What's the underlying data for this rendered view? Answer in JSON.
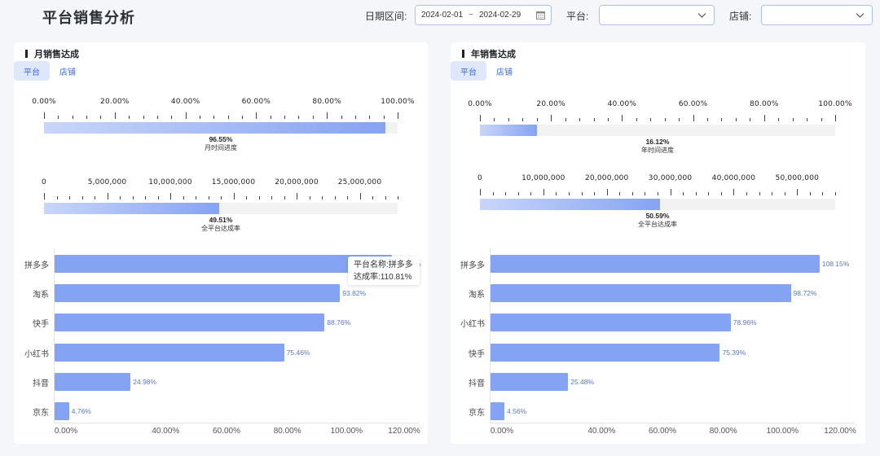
{
  "header": {
    "title": "平台销售分析",
    "filters": {
      "date_label": "日期区间:",
      "date_start": "2024-02-01",
      "date_sep": "~",
      "date_end": "2024-02-29",
      "platform_label": "平台:",
      "platform_value": "",
      "store_label": "店铺:",
      "store_value": ""
    }
  },
  "monthly": {
    "title": "月销售达成",
    "tabs": [
      {
        "label": "平台",
        "active": true
      },
      {
        "label": "店铺",
        "active": false
      }
    ],
    "time_gauge": {
      "ticks": [
        "0.00%",
        "20.00%",
        "40.00%",
        "60.00%",
        "80.00%",
        "100.00%"
      ],
      "value": "96.55%",
      "ratio": 0.9655,
      "caption": "月时间进度"
    },
    "amount_gauge": {
      "ticks": [
        "0",
        "5,000,000",
        "10,000,000",
        "15,000,000",
        "20,000,000",
        "25,000,000"
      ],
      "max": 28000000,
      "filled_ratio": 0.495,
      "value": "49.51%",
      "caption": "全平台达成率"
    },
    "tooltip": {
      "line1": "平台名称:拼多多",
      "line2": "达成率:110.81%"
    }
  },
  "yearly": {
    "title": "年销售达成",
    "tabs": [
      {
        "label": "平台",
        "active": true
      },
      {
        "label": "店铺",
        "active": false
      }
    ],
    "time_gauge": {
      "ticks": [
        "0.00%",
        "20.00%",
        "40.00%",
        "60.00%",
        "80.00%",
        "100.00%"
      ],
      "value": "16.12%",
      "ratio": 0.1612,
      "caption": "年时间进度"
    },
    "amount_gauge": {
      "ticks": [
        "0",
        "10,000,000",
        "20,000,000",
        "30,000,000",
        "40,000,000",
        "50,000,000"
      ],
      "max": 56000000,
      "filled_ratio": 0.506,
      "value": "50.59%",
      "caption": "全平台达成率"
    }
  },
  "chart_data": [
    {
      "type": "bar",
      "orientation": "horizontal",
      "title": "月销售达成 - 平台达成率",
      "categories": [
        "拼多多",
        "淘系",
        "快手",
        "小红书",
        "抖音",
        "京东"
      ],
      "values": [
        110.81,
        93.82,
        88.76,
        75.46,
        24.98,
        4.76
      ],
      "labels": [
        "110.81%",
        "93.82%",
        "88.76%",
        "75.46%",
        "24.98%",
        "4.76%"
      ],
      "xticks": [
        "0.00%",
        "40.00%",
        "60.00%",
        "80.00%",
        "100.00%",
        "120.00%"
      ],
      "xlim": [
        0,
        120
      ],
      "xlabel": "",
      "ylabel": ""
    },
    {
      "type": "bar",
      "orientation": "horizontal",
      "title": "年销售达成 - 平台达成率",
      "categories": [
        "拼多多",
        "淘系",
        "小红书",
        "快手",
        "抖音",
        "京东"
      ],
      "values": [
        108.15,
        98.72,
        78.96,
        75.39,
        25.48,
        4.56
      ],
      "labels": [
        "108.15%",
        "98.72%",
        "78.96%",
        "75.39%",
        "25.48%",
        "4.56%"
      ],
      "xticks": [
        "0.00%",
        "40.00%",
        "60.00%",
        "80.00%",
        "100.00%",
        "120.00%"
      ],
      "xlim": [
        0,
        120
      ],
      "xlabel": "",
      "ylabel": ""
    }
  ],
  "colors": {
    "bar": "#84a3f3",
    "gauge_start": "#c8d6fa",
    "gauge_end": "#86a3f2",
    "tab_active_bg": "#dfe7fb",
    "accent_text": "#3b6ad6",
    "value_label": "#5877c4"
  }
}
